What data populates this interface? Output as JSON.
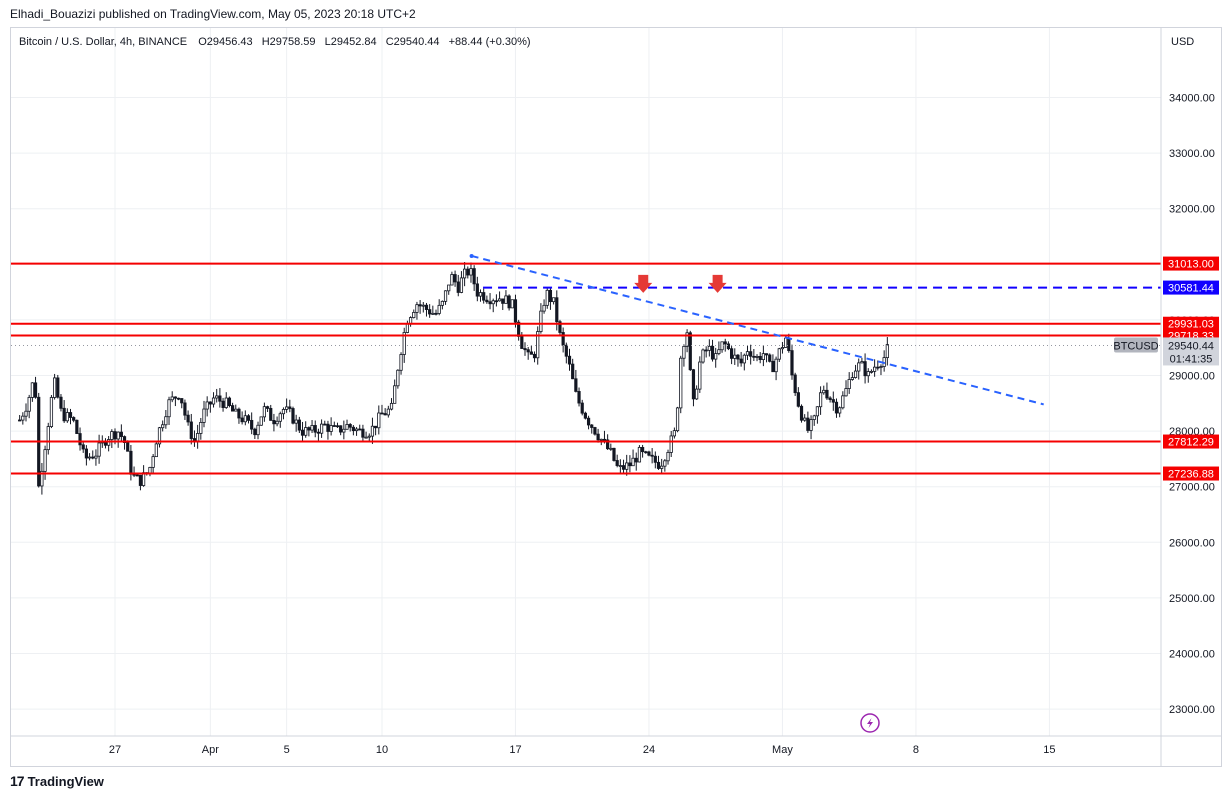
{
  "header": {
    "publisher_line": "Elhadi_Bouazizi published on TradingView.com, May 05, 2023 20:18 UTC+2"
  },
  "legend": {
    "symbol": "Bitcoin / U.S. Dollar, 4h, BINANCE",
    "open_label": "O",
    "open": "29456.43",
    "high_label": "H",
    "high": "29758.59",
    "low_label": "L",
    "low": "29452.84",
    "close_label": "C",
    "close": "29540.44",
    "change": "+88.44 (+0.30%)"
  },
  "footer": {
    "brand": "TradingView"
  },
  "colors": {
    "candle": "#131722",
    "level": "#f50000",
    "dashed": "#1100ff",
    "trend": "#2962ff",
    "arrow": "#e53935",
    "grid": "#eef0f3",
    "flash": "#9c27b0"
  },
  "chart_data": {
    "type": "candlestick",
    "currency_label": "USD",
    "y_ticks": [
      23000,
      24000,
      25000,
      26000,
      27000,
      28000,
      29000,
      30000,
      31000,
      32000,
      33000,
      34000
    ],
    "y_tick_labels": [
      "23000.00",
      "24000.00",
      "25000.00",
      "26000.00",
      "27000.00",
      "28000.00",
      "29000.00",
      "30000.00",
      "31000.00",
      "32000.00",
      "33000.00",
      "34000.00"
    ],
    "x_ticks": [
      {
        "label": "27",
        "day": 0
      },
      {
        "label": "Apr",
        "day": 5
      },
      {
        "label": "5",
        "day": 9
      },
      {
        "label": "10",
        "day": 14
      },
      {
        "label": "17",
        "day": 21
      },
      {
        "label": "24",
        "day": 28
      },
      {
        "label": "May",
        "day": 35
      },
      {
        "label": "8",
        "day": 42
      },
      {
        "label": "15",
        "day": 49
      }
    ],
    "horizontal_levels": [
      {
        "value": 31013.0,
        "label": "31013.00",
        "style": "solid-red"
      },
      {
        "value": 29931.03,
        "label": "29931.03",
        "style": "solid-red"
      },
      {
        "value": 29718.33,
        "label": "29718.33",
        "style": "solid-red"
      },
      {
        "value": 27812.29,
        "label": "27812.29",
        "style": "solid-red"
      },
      {
        "value": 27236.88,
        "label": "27236.88",
        "style": "solid-red"
      }
    ],
    "dashed_level": {
      "value": 30581.44,
      "label": "30581.44",
      "from_day": 19.3
    },
    "trendline": {
      "from": {
        "day": 18.7,
        "value": 31150
      },
      "to": {
        "day": 48.7,
        "value": 28480
      }
    },
    "markers": [
      {
        "day": 27.7,
        "value": 30630,
        "type": "down-arrow"
      },
      {
        "day": 31.6,
        "value": 30630,
        "type": "down-arrow"
      }
    ],
    "last_price": {
      "symbol": "BTCUSD",
      "value": 29540.44,
      "label": "29540.44",
      "countdown": "01:41:35"
    },
    "close_path": [
      [
        -5.0,
        28200
      ],
      [
        -4.6,
        28500
      ],
      [
        -4.2,
        29000
      ],
      [
        -4.0,
        27000
      ],
      [
        -3.6,
        27900
      ],
      [
        -3.2,
        28900
      ],
      [
        -2.8,
        28300
      ],
      [
        -2.2,
        28200
      ],
      [
        -1.6,
        27500
      ],
      [
        -1.0,
        27600
      ],
      [
        -0.4,
        27900
      ],
      [
        0.2,
        28000
      ],
      [
        0.5,
        27800
      ],
      [
        0.9,
        27200
      ],
      [
        1.3,
        27100
      ],
      [
        1.8,
        27300
      ],
      [
        2.2,
        27900
      ],
      [
        2.8,
        28500
      ],
      [
        3.4,
        28700
      ],
      [
        3.8,
        28100
      ],
      [
        4.2,
        27800
      ],
      [
        4.6,
        28300
      ],
      [
        5.2,
        28600
      ],
      [
        5.8,
        28500
      ],
      [
        6.3,
        28300
      ],
      [
        6.8,
        28200
      ],
      [
        7.3,
        28000
      ],
      [
        7.8,
        28400
      ],
      [
        8.3,
        28200
      ],
      [
        8.8,
        28400
      ],
      [
        9.2,
        28300
      ],
      [
        9.8,
        28000
      ],
      [
        10.4,
        28000
      ],
      [
        11.0,
        28100
      ],
      [
        11.6,
        28000
      ],
      [
        12.2,
        28100
      ],
      [
        12.8,
        28000
      ],
      [
        13.4,
        28000
      ],
      [
        14.0,
        28300
      ],
      [
        14.5,
        28400
      ],
      [
        14.9,
        29300
      ],
      [
        15.3,
        30000
      ],
      [
        15.8,
        30300
      ],
      [
        16.3,
        30200
      ],
      [
        16.8,
        30100
      ],
      [
        17.2,
        30300
      ],
      [
        17.6,
        30800
      ],
      [
        18.0,
        30600
      ],
      [
        18.3,
        30800
      ],
      [
        18.6,
        30900
      ],
      [
        19.0,
        30500
      ],
      [
        19.6,
        30400
      ],
      [
        20.2,
        30400
      ],
      [
        20.8,
        30300
      ],
      [
        21.3,
        29600
      ],
      [
        21.7,
        29300
      ],
      [
        22.0,
        29400
      ],
      [
        22.3,
        30000
      ],
      [
        22.6,
        30500
      ],
      [
        23.0,
        30300
      ],
      [
        23.4,
        29600
      ],
      [
        23.8,
        29200
      ],
      [
        24.2,
        28600
      ],
      [
        24.8,
        28200
      ],
      [
        25.4,
        27900
      ],
      [
        26.0,
        27600
      ],
      [
        26.4,
        27300
      ],
      [
        27.0,
        27400
      ],
      [
        27.5,
        27600
      ],
      [
        28.0,
        27500
      ],
      [
        28.6,
        27400
      ],
      [
        29.0,
        27700
      ],
      [
        29.4,
        28000
      ],
      [
        29.7,
        29500
      ],
      [
        30.0,
        29800
      ],
      [
        30.3,
        28400
      ],
      [
        30.7,
        29300
      ],
      [
        31.1,
        29500
      ],
      [
        31.5,
        29300
      ],
      [
        31.9,
        29600
      ],
      [
        32.3,
        29400
      ],
      [
        32.8,
        29200
      ],
      [
        33.2,
        29500
      ],
      [
        33.6,
        29300
      ],
      [
        34.0,
        29400
      ],
      [
        34.4,
        29100
      ],
      [
        34.8,
        29400
      ],
      [
        35.2,
        29700
      ],
      [
        35.5,
        29000
      ],
      [
        35.9,
        28400
      ],
      [
        36.3,
        28000
      ],
      [
        36.7,
        28200
      ],
      [
        37.1,
        28800
      ],
      [
        37.5,
        28600
      ],
      [
        37.9,
        28400
      ],
      [
        38.3,
        28700
      ],
      [
        38.7,
        29100
      ],
      [
        39.1,
        29200
      ],
      [
        39.5,
        29000
      ],
      [
        39.9,
        29200
      ],
      [
        40.3,
        29300
      ],
      [
        40.6,
        29540
      ]
    ]
  }
}
